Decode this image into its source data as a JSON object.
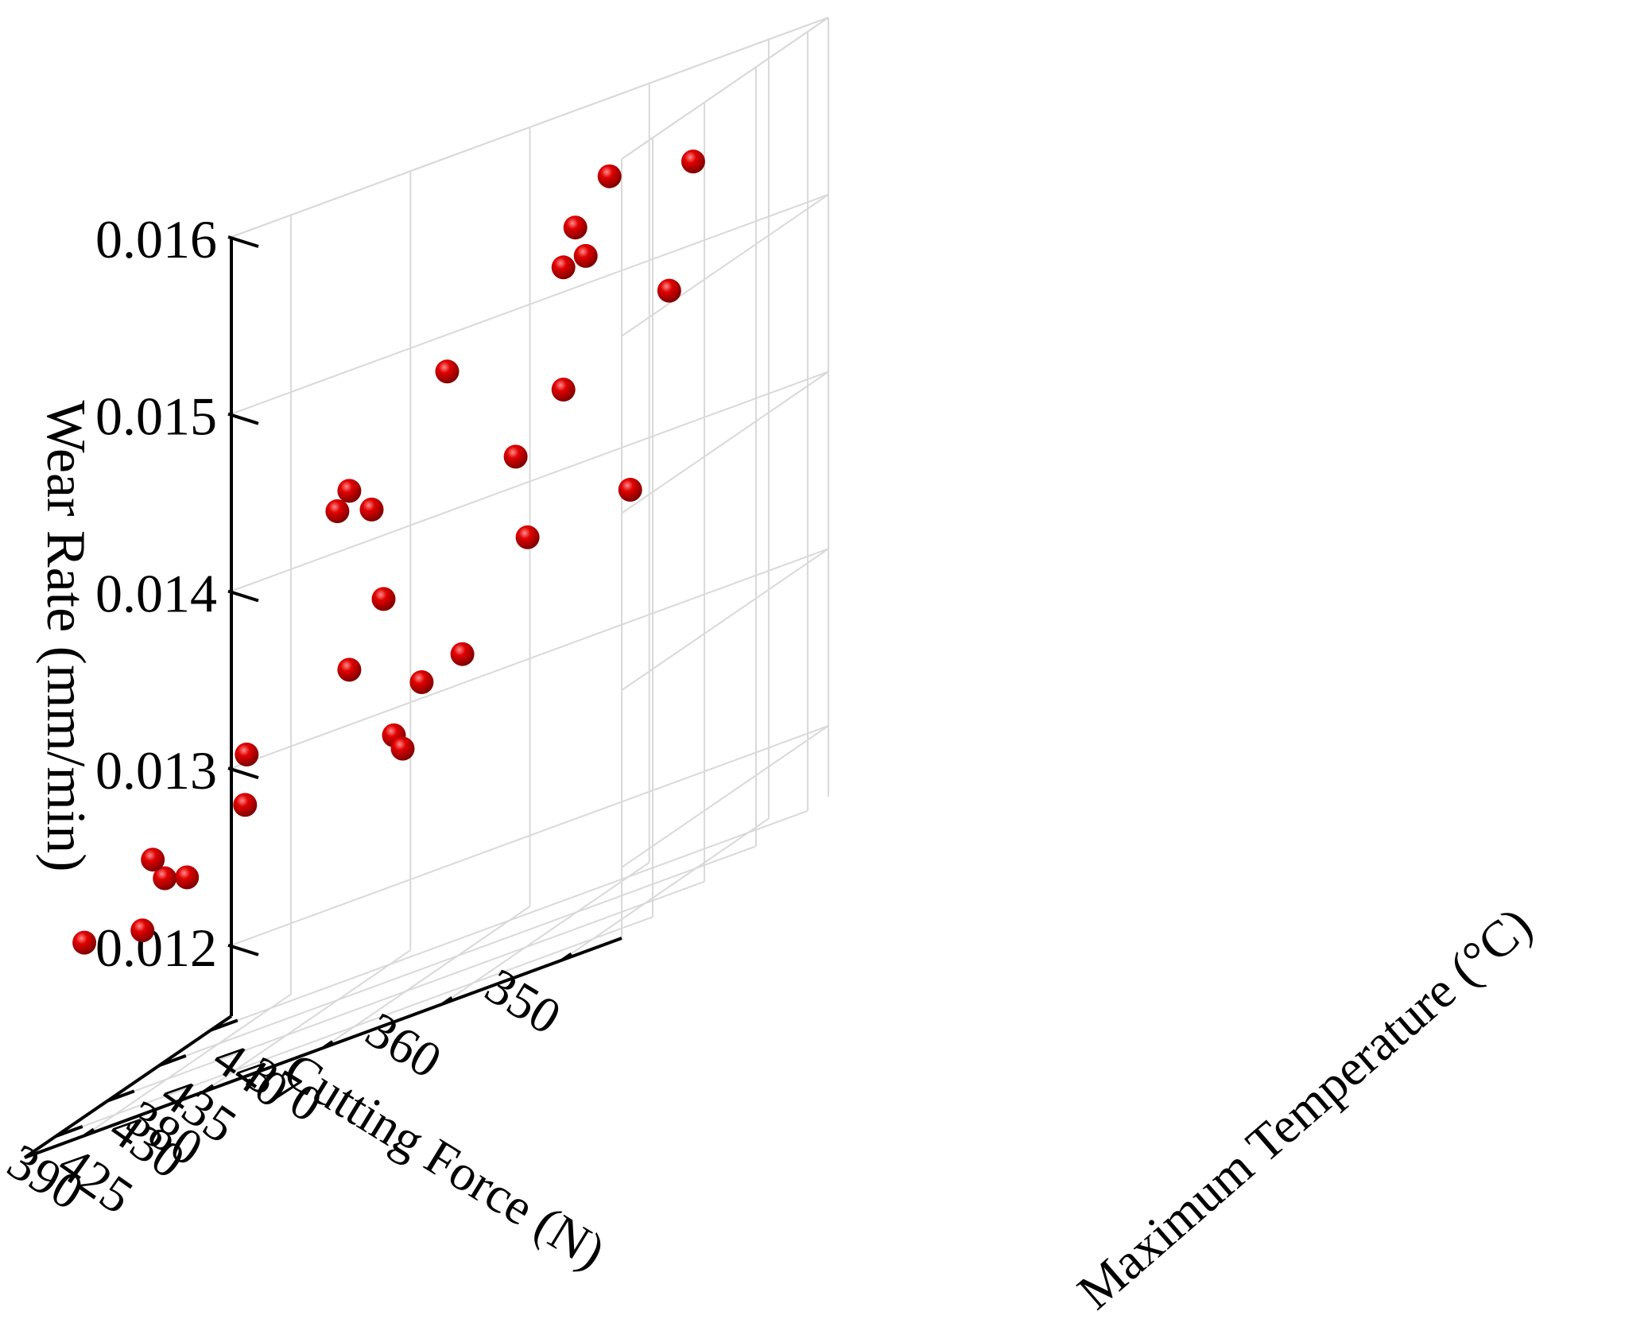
{
  "chart_data": {
    "type": "scatter",
    "dimensions": 3,
    "xlabel": "Cutting Force (N)",
    "ylabel": "Maximum Temperature (°C)",
    "zlabel": "Wear Rate (mm/min)",
    "x_ticks": [
      "350",
      "360",
      "370",
      "380",
      "390"
    ],
    "y_ticks": [
      "425",
      "430",
      "435",
      "440"
    ],
    "z_ticks": [
      "0.012",
      "0.013",
      "0.014",
      "0.015",
      "0.016"
    ],
    "xlim": [
      345,
      395
    ],
    "ylim": [
      422,
      442
    ],
    "zlim": [
      0.0116,
      0.016
    ],
    "grid": true,
    "marker": "sphere",
    "colors": {
      "point": "#e00000",
      "point_highlight": "#ff8a8a",
      "point_shadow": "#7a0000",
      "grid": "#d9d9d9",
      "axis": "#000000"
    },
    "points": [
      {
        "x": 359,
        "y": 437,
        "z": 0.01565
      },
      {
        "x": 352,
        "y": 437,
        "z": 0.01556
      },
      {
        "x": 361,
        "y": 436,
        "z": 0.01545
      },
      {
        "x": 362,
        "y": 436,
        "z": 0.01525
      },
      {
        "x": 361,
        "y": 437,
        "z": 0.01525
      },
      {
        "x": 370,
        "y": 434,
        "z": 0.01494
      },
      {
        "x": 354,
        "y": 437,
        "z": 0.01488
      },
      {
        "x": 362,
        "y": 436,
        "z": 0.01456
      },
      {
        "x": 373,
        "y": 428,
        "z": 0.01458
      },
      {
        "x": 374,
        "y": 428,
        "z": 0.01449
      },
      {
        "x": 372,
        "y": 429,
        "z": 0.01441
      },
      {
        "x": 366,
        "y": 436,
        "z": 0.01428
      },
      {
        "x": 371,
        "y": 429,
        "z": 0.01388
      },
      {
        "x": 365,
        "y": 436,
        "z": 0.0138
      },
      {
        "x": 359,
        "y": 439,
        "z": 0.0138
      },
      {
        "x": 373,
        "y": 428,
        "z": 0.01357
      },
      {
        "x": 367,
        "y": 432,
        "z": 0.01335
      },
      {
        "x": 379,
        "y": 425,
        "z": 0.01336
      },
      {
        "x": 373,
        "y": 435,
        "z": 0.01322
      },
      {
        "x": 371,
        "y": 430,
        "z": 0.01307
      },
      {
        "x": 380,
        "y": 426,
        "z": 0.01306
      },
      {
        "x": 386,
        "y": 424,
        "z": 0.01298
      },
      {
        "x": 372,
        "y": 432,
        "z": 0.01294
      },
      {
        "x": 385,
        "y": 424,
        "z": 0.01285
      },
      {
        "x": 384,
        "y": 425,
        "z": 0.01279
      },
      {
        "x": 390,
        "y": 422,
        "z": 0.01269
      },
      {
        "x": 386,
        "y": 423,
        "z": 0.01262
      }
    ]
  }
}
